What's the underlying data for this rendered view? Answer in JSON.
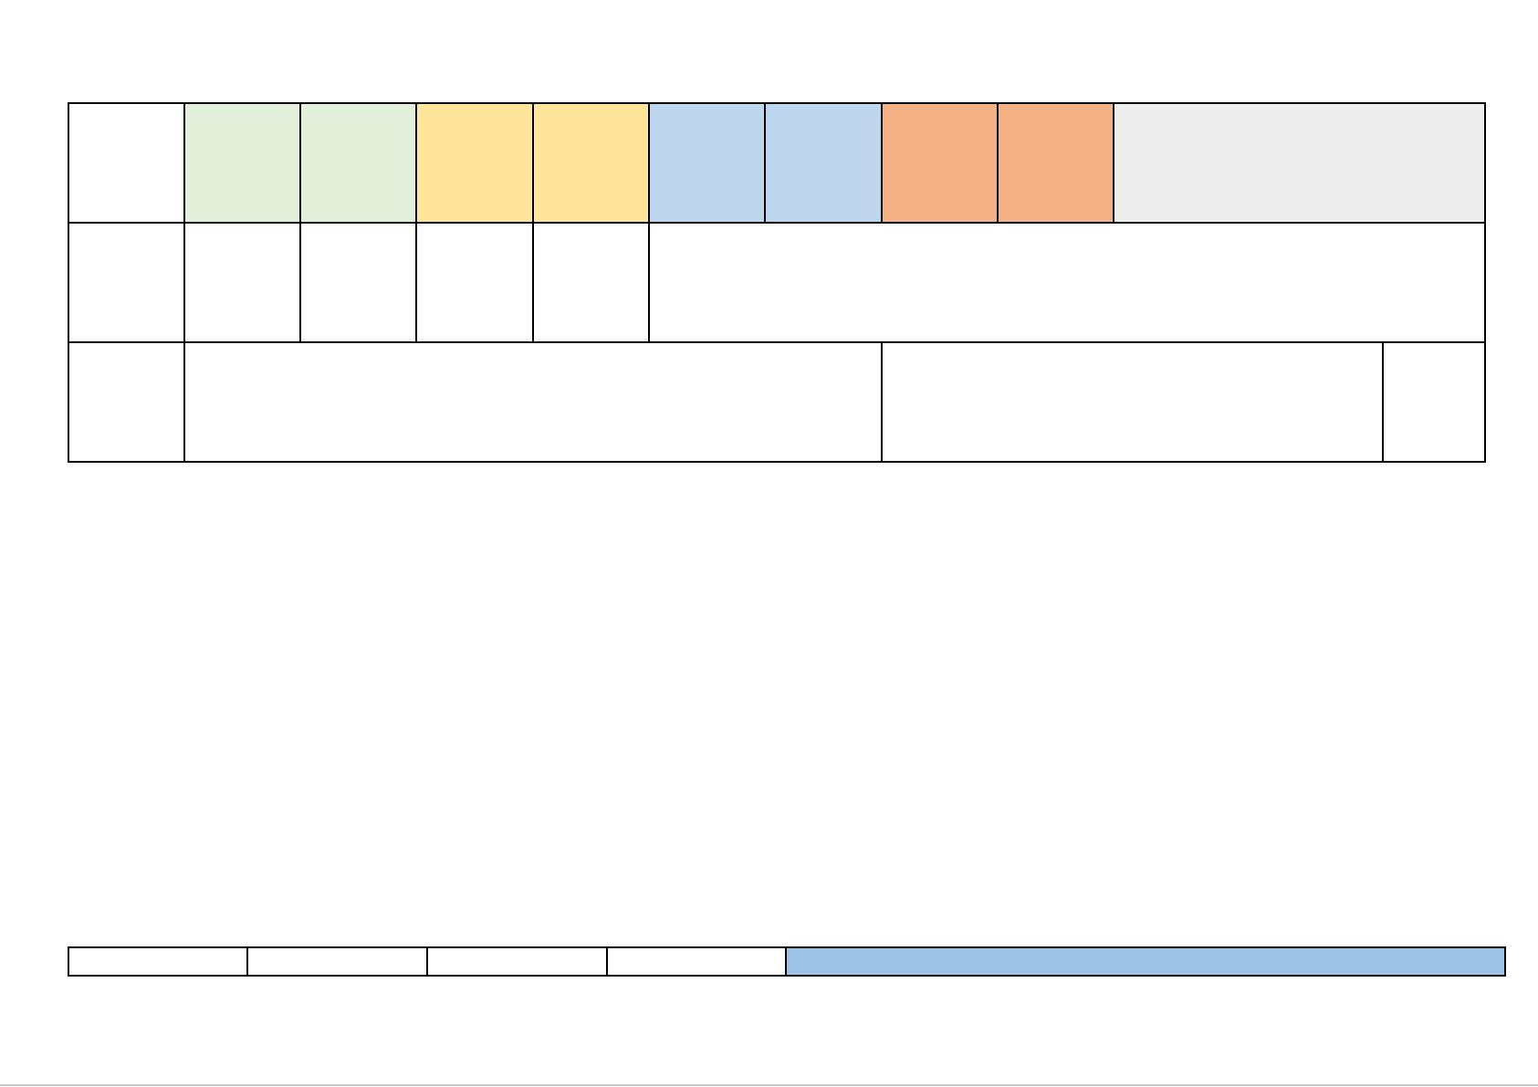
{
  "colors": {
    "green": "#e2efd9",
    "yellow": "#fee599",
    "blue": "#bdd6ee",
    "orange": "#f4b183",
    "gray": "#ededed",
    "strip_blue": "#9dc3e6",
    "border": "#000000"
  },
  "grid": {
    "row1": [
      "",
      "",
      "",
      "",
      "",
      "",
      "",
      "",
      "",
      ""
    ],
    "row2": [
      "",
      "",
      "",
      "",
      "",
      ""
    ],
    "row3": [
      "",
      "",
      "",
      ""
    ]
  },
  "strip": [
    "",
    "",
    "",
    "",
    ""
  ]
}
